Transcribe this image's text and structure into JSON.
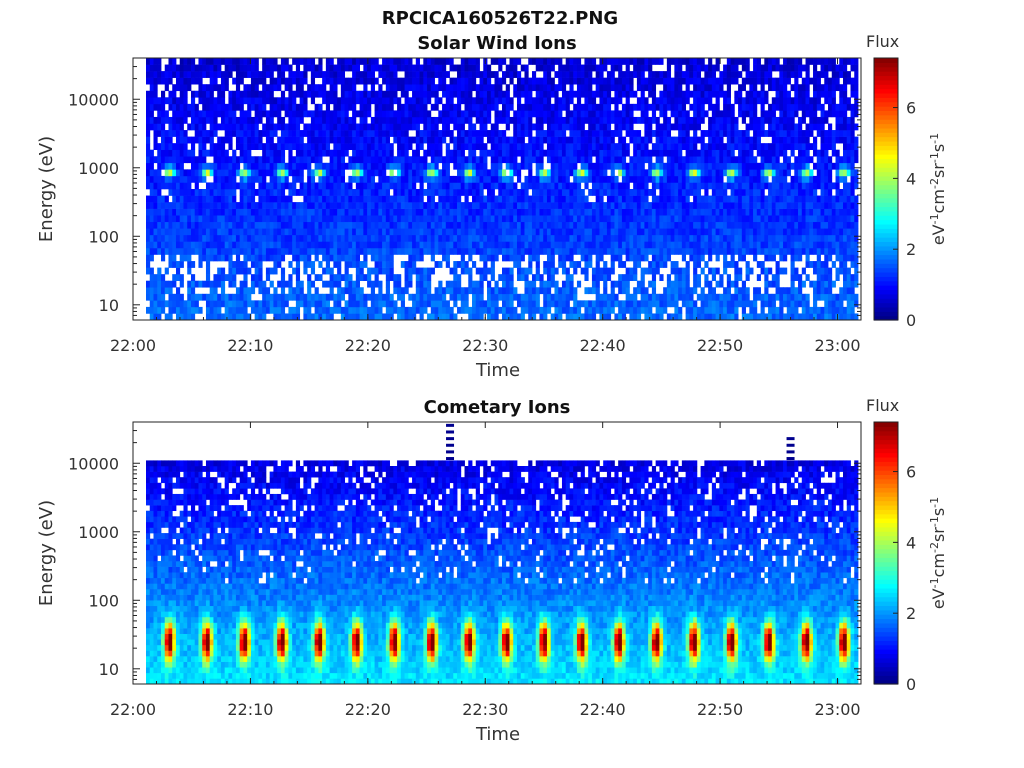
{
  "figure": {
    "title": "RPCICA160526T22.PNG"
  },
  "chart_data": [
    {
      "type": "heatmap",
      "title": "Solar Wind Ions",
      "xlabel": "Time",
      "ylabel": "Energy (eV)",
      "x_ticks": [
        "22:00",
        "22:10",
        "22:20",
        "22:30",
        "22:40",
        "22:50",
        "23:00"
      ],
      "xlim": [
        "22:00",
        "23:02"
      ],
      "y_scale": "log",
      "y_ticks": [
        10,
        100,
        1000,
        10000
      ],
      "ylim": [
        6,
        40000
      ],
      "colorbar": {
        "label_top": "Flux",
        "label_side": "eV-1cm-2sr-1s-1",
        "ticks": [
          0,
          2,
          4,
          6
        ],
        "range": [
          0,
          7.4
        ],
        "colormap": "jet"
      },
      "periodic_feature": {
        "energy_eV": 850,
        "level": 3.2,
        "period_min": 3.2,
        "description": "periodic peaks"
      },
      "background": {
        "high_energy_level": 0.6,
        "low_energy_level": 1.7
      }
    },
    {
      "type": "heatmap",
      "title": "Cometary Ions",
      "xlabel": "Time",
      "ylabel": "Energy (eV)",
      "x_ticks": [
        "22:00",
        "22:10",
        "22:20",
        "22:30",
        "22:40",
        "22:50",
        "23:00"
      ],
      "xlim": [
        "22:00",
        "23:02"
      ],
      "y_scale": "log",
      "y_ticks": [
        10,
        100,
        1000,
        10000
      ],
      "ylim": [
        6,
        40000
      ],
      "data_upper_energy_eV": 11000,
      "colorbar": {
        "label_top": "Flux",
        "label_side": "eV-1cm-2sr-1s-1",
        "ticks": [
          0,
          2,
          4,
          6
        ],
        "range": [
          0,
          7.4
        ],
        "colormap": "jet"
      },
      "periodic_feature": {
        "energy_eV": 25,
        "level": 5.8,
        "period_min": 3.2,
        "description": "periodic peaks"
      },
      "spikes": [
        {
          "time": "22:27",
          "top_eV": 40000
        },
        {
          "time": "22:56",
          "top_eV": 22000
        }
      ],
      "background": {
        "high_energy_level": 0.7,
        "low_energy_level": 2.6
      }
    }
  ]
}
